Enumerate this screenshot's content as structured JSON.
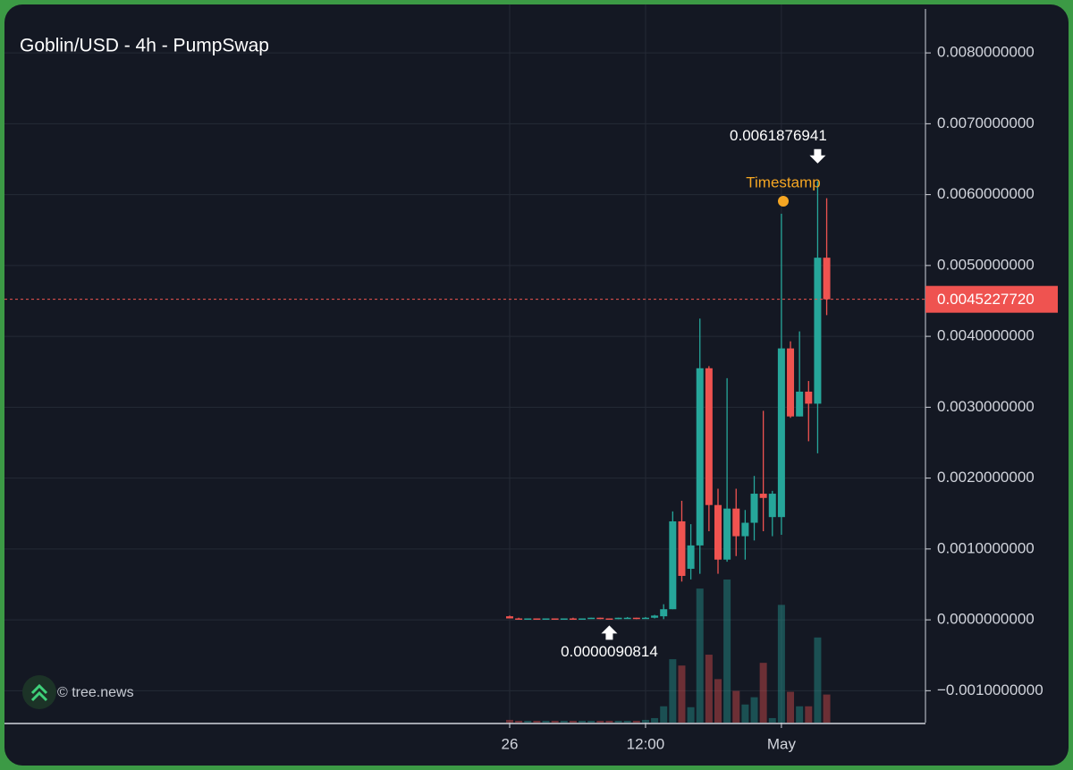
{
  "chart_data": {
    "type": "candlestick",
    "title": "Goblin/USD - 4h - PumpSwap",
    "watermark": "© tree.news",
    "categories": [
      "26",
      null,
      null,
      null,
      null,
      null,
      null,
      null,
      null,
      null,
      null,
      null,
      null,
      null,
      null,
      "12:00",
      null,
      null,
      null,
      null,
      null,
      null,
      null,
      null,
      null,
      null,
      null,
      null,
      null,
      null,
      "May",
      null,
      null,
      null,
      null,
      null
    ],
    "open": [
      5e-05,
      2e-05,
      1e-05,
      2e-05,
      1e-05,
      2e-05,
      1e-05,
      2e-05,
      1e-05,
      2e-05,
      3e-05,
      2e-05,
      1e-05,
      3e-05,
      3e-05,
      2e-05,
      3e-05,
      5e-05,
      0.00015,
      0.00139,
      0.00072,
      0.00105,
      0.00355,
      0.00162,
      0.00085,
      0.00157,
      0.00118,
      0.00137,
      0.00178,
      0.00145,
      0.00145,
      0.00383,
      0.00287,
      0.00322,
      0.00305,
      0.00511
    ],
    "high": [
      6e-05,
      3e-05,
      2e-05,
      2e-05,
      2e-05,
      2e-05,
      2e-05,
      3e-05,
      2e-05,
      3e-05,
      3e-05,
      2e-05,
      3e-05,
      4e-05,
      3e-05,
      4e-05,
      7e-05,
      0.00022,
      0.00153,
      0.00168,
      0.00135,
      0.00425,
      0.00358,
      0.00185,
      0.00341,
      0.00185,
      0.00155,
      0.00203,
      0.00295,
      0.00182,
      0.00573,
      0.00393,
      0.00407,
      0.00337,
      0.0061876941,
      0.00595
    ],
    "low": [
      2e-05,
      1e-05,
      1e-05,
      1e-05,
      1e-05,
      1e-05,
      1e-05,
      1e-05,
      1e-05,
      2e-05,
      1e-05,
      9.0814e-06,
      1e-05,
      2e-05,
      1e-05,
      2e-05,
      2e-05,
      1e-05,
      0.00015,
      0.00054,
      0.00057,
      0.00065,
      0.00125,
      0.00065,
      0.00082,
      0.0009,
      0.00085,
      0.00112,
      0.00125,
      0.00118,
      0.0012,
      0.00285,
      0.00287,
      0.00252,
      0.00235,
      0.0043
    ],
    "close": [
      2e-05,
      1e-05,
      2e-05,
      1e-05,
      2e-05,
      1e-05,
      2e-05,
      1e-05,
      2e-05,
      3e-05,
      2e-05,
      1e-05,
      3e-05,
      3e-05,
      2e-05,
      3e-05,
      6e-05,
      0.00015,
      0.00139,
      0.00062,
      0.00105,
      0.00355,
      0.00162,
      0.00085,
      0.00157,
      0.00118,
      0.00137,
      0.00178,
      0.00172,
      0.00178,
      0.00383,
      0.00287,
      0.00322,
      0.00305,
      0.00511,
      0.004522772
    ],
    "volume": [
      3,
      2,
      2,
      2,
      2,
      2,
      2,
      2,
      2,
      2,
      2,
      2,
      2,
      2,
      2,
      3,
      5,
      18,
      70,
      63,
      17,
      148,
      75,
      48,
      158,
      35,
      20,
      28,
      66,
      5,
      130,
      34,
      18,
      18,
      94,
      31
    ],
    "up_color": "#26a69a",
    "down_color": "#ef5350",
    "high_label": 0.0061876941,
    "low_label": 9.0814e-06,
    "last_price": {
      "value": 0.004522772,
      "label": "0.0045227720"
    },
    "marker_label": "Timestamp",
    "ylim": [
      -0.00145,
      0.00862
    ],
    "yticks": [
      {
        "value": -0.001,
        "label": "−0.0010000000"
      },
      {
        "value": 0,
        "label": "0.0000000000"
      },
      {
        "value": 0.001,
        "label": "0.0010000000"
      },
      {
        "value": 0.002,
        "label": "0.0020000000"
      },
      {
        "value": 0.003,
        "label": "0.0030000000"
      },
      {
        "value": 0.004,
        "label": "0.0040000000"
      },
      {
        "value": 0.005,
        "label": "0.0050000000"
      },
      {
        "value": 0.006,
        "label": "0.0060000000"
      },
      {
        "value": 0.007,
        "label": "0.0070000000"
      },
      {
        "value": 0.008,
        "label": "0.0080000000"
      }
    ],
    "grid": true
  }
}
